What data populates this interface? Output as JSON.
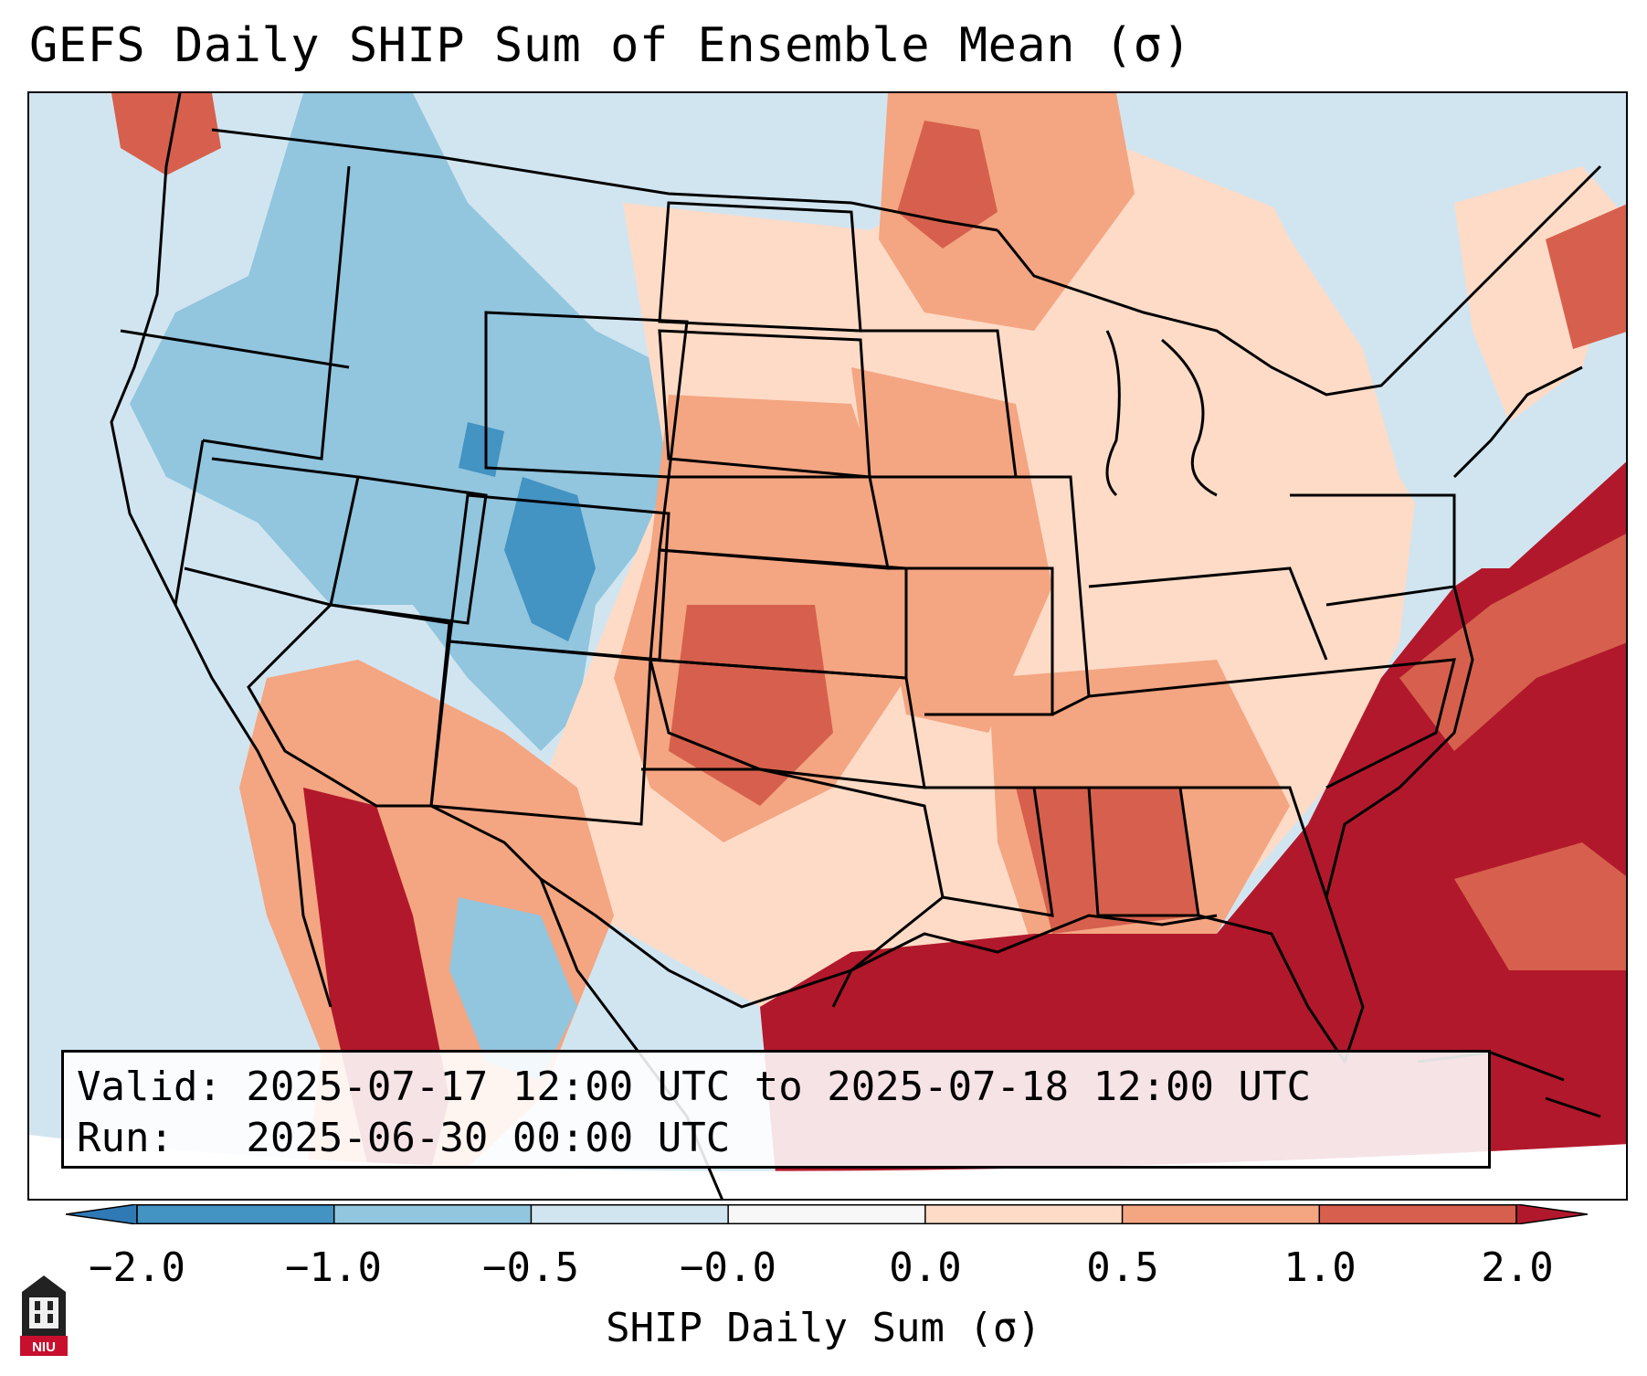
{
  "title": "GEFS Daily SHIP Sum of Ensemble Mean (σ)",
  "info": {
    "valid_line": "Valid: 2025-07-17 12:00 UTC to 2025-07-18 12:00 UTC",
    "run_line": "Run:   2025-06-30 00:00 UTC"
  },
  "colorbar": {
    "label": "SHIP Daily Sum (σ)",
    "ticks": [
      "−2.0",
      "−1.0",
      "−0.5",
      "−0.0",
      "0.0",
      "0.5",
      "1.0",
      "2.0"
    ],
    "colors": {
      "below": "#2f79b5",
      "c1": "#4393c3",
      "c2": "#92c5de",
      "c3": "#d1e5f0",
      "c4": "#f7f7f7",
      "c5": "#fddbc7",
      "c6": "#f4a582",
      "c7": "#d6604d",
      "above": "#b2182b"
    }
  },
  "logo": {
    "text": "NIU"
  }
}
